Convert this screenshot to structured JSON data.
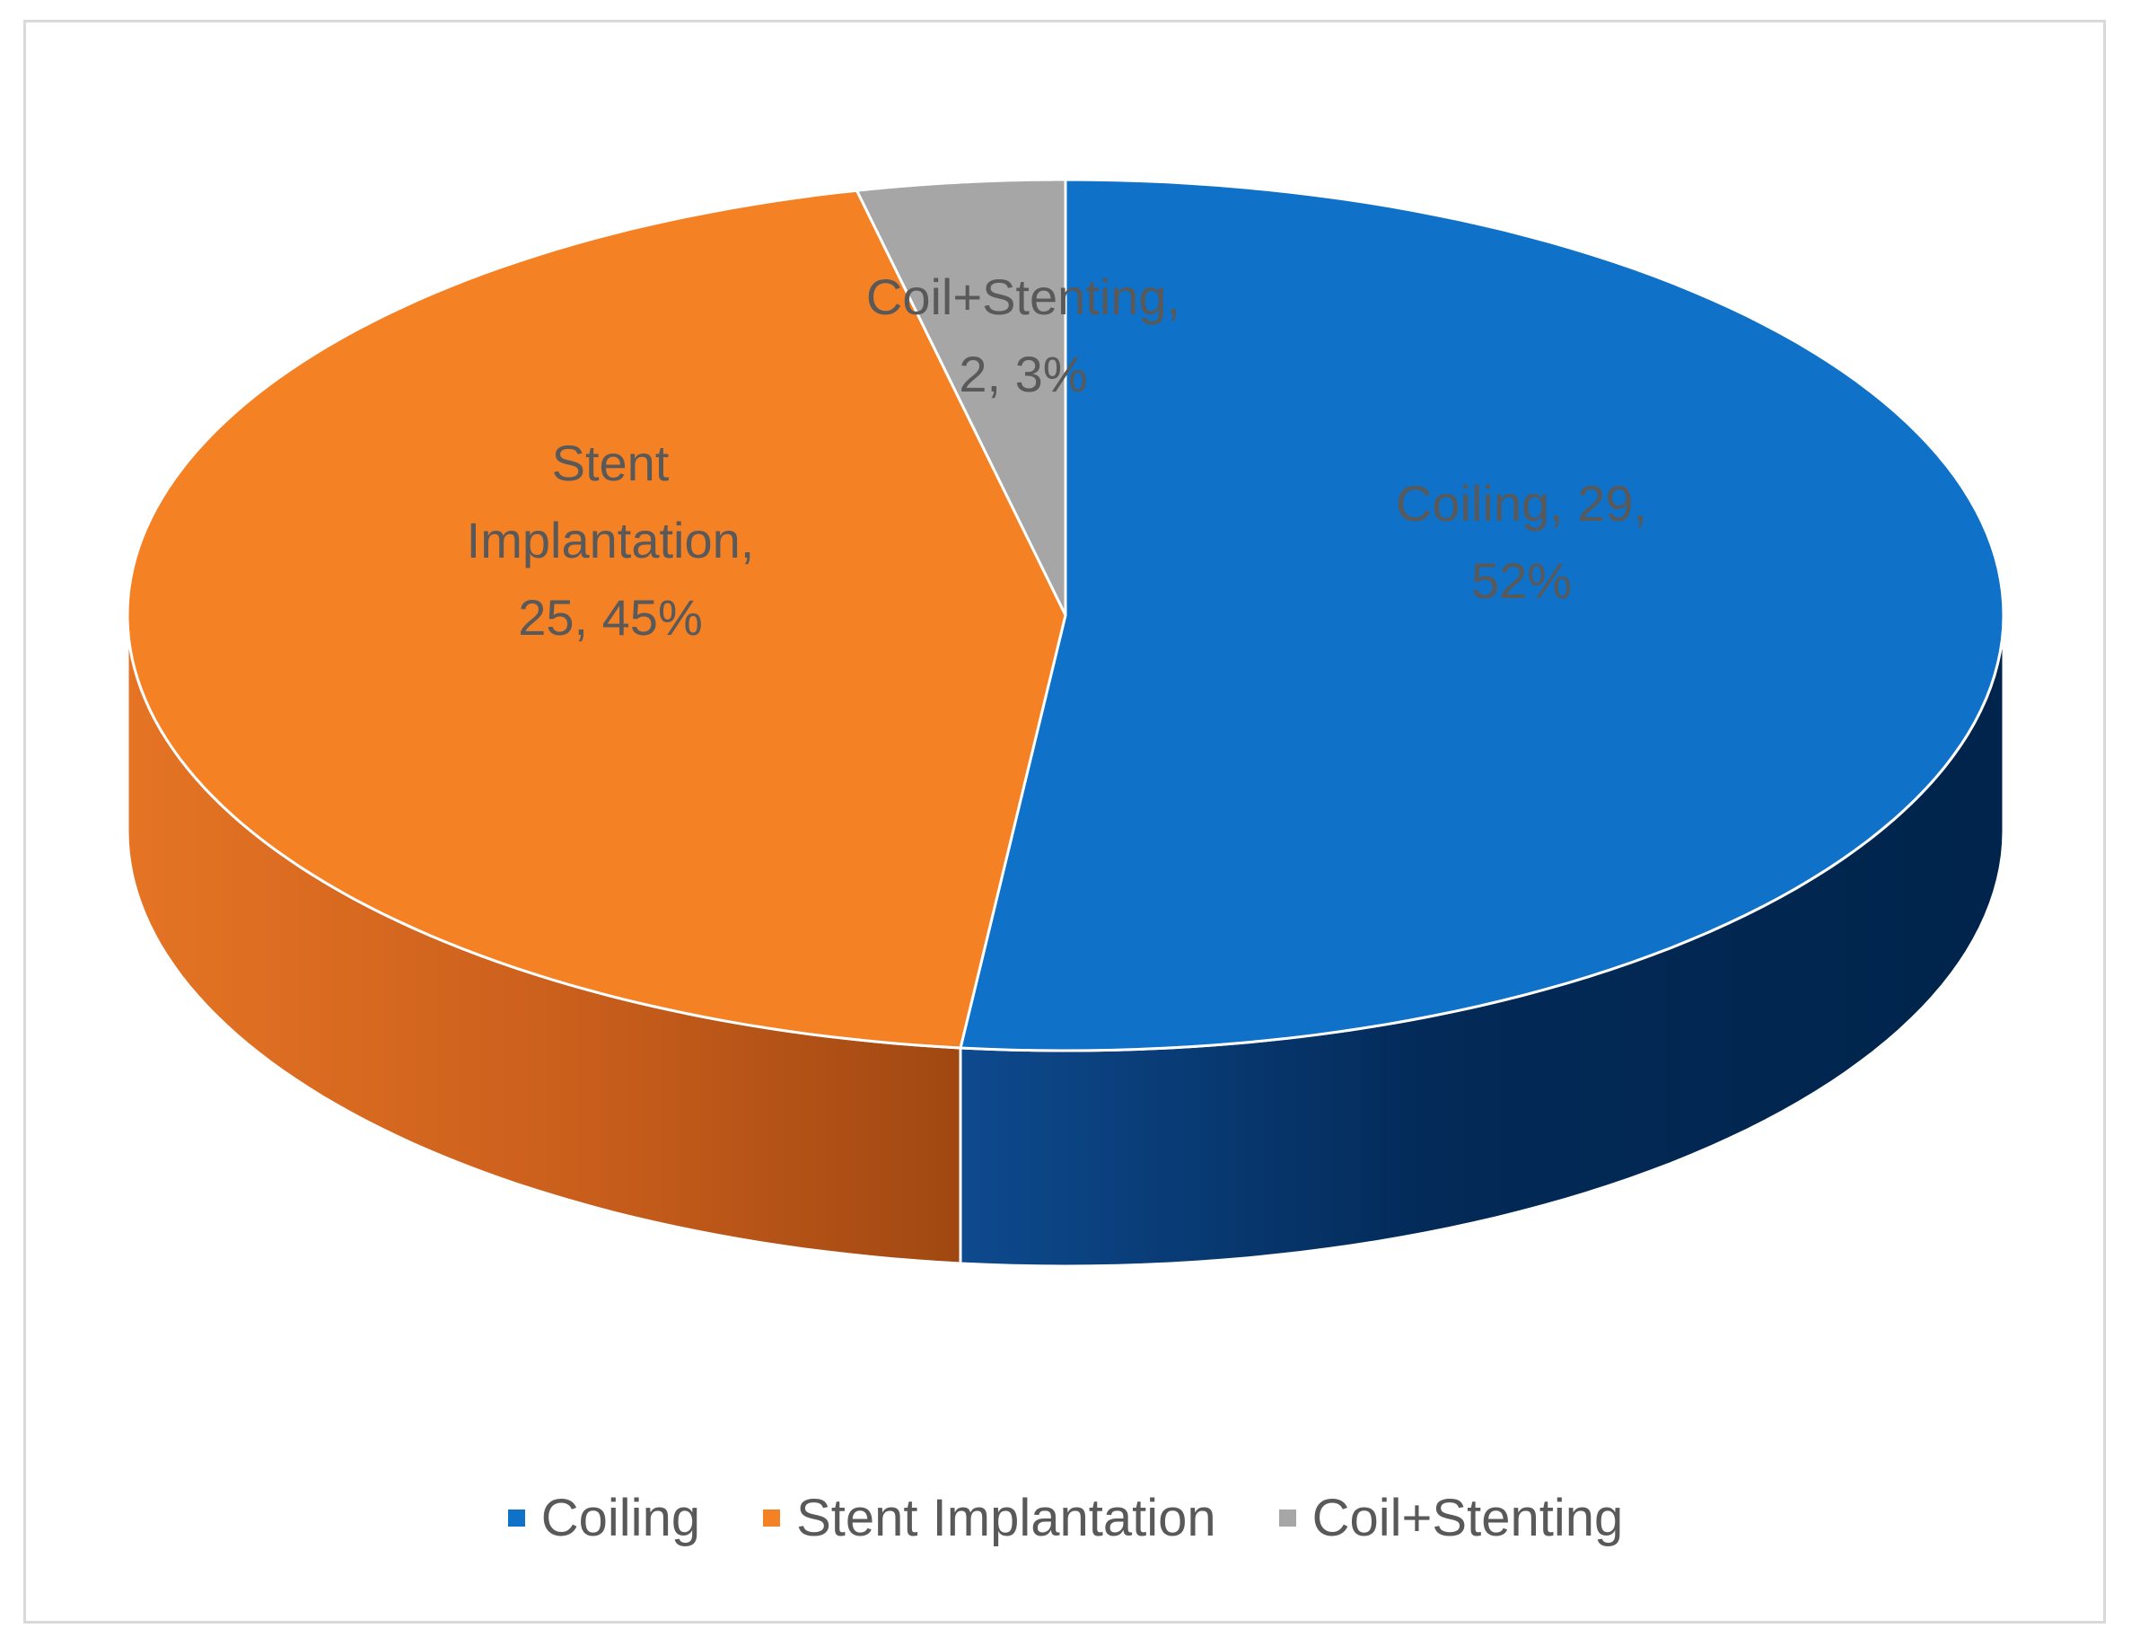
{
  "chart_data": {
    "type": "pie",
    "style": "3d",
    "title": "",
    "slices": [
      {
        "name": "Coiling",
        "value": 29,
        "percent": "52%",
        "label_lines": [
          "Coiling, 29,",
          "52%"
        ],
        "color": "#0f71c7",
        "side_color": "#0b3f7a"
      },
      {
        "name": "Stent Implantation",
        "value": 25,
        "percent": "45%",
        "label_lines": [
          "Stent",
          "Implantation,",
          "25, 45%"
        ],
        "color": "#f58125",
        "side_color": "#c85f1a"
      },
      {
        "name": "Coil+Stenting",
        "value": 2,
        "percent": "3%",
        "label_lines": [
          "Coil+Stenting,",
          "2, 3%"
        ],
        "color": "#a6a6a6",
        "side_color": "#7f7f7f"
      }
    ],
    "legend_position": "bottom",
    "legend": [
      {
        "label": "Coiling",
        "color": "#0f71c7"
      },
      {
        "label": "Stent Implantation",
        "color": "#f58125"
      },
      {
        "label": "Coil+Stenting",
        "color": "#a6a6a6"
      }
    ]
  }
}
